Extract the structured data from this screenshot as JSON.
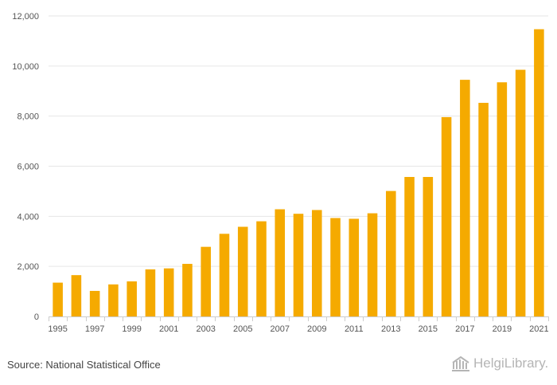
{
  "chart_data": {
    "type": "bar",
    "title": "",
    "xlabel": "",
    "ylabel": "",
    "categories": [
      "1995",
      "1996",
      "1997",
      "1998",
      "1999",
      "2000",
      "2001",
      "2002",
      "2003",
      "2004",
      "2005",
      "2006",
      "2007",
      "2008",
      "2009",
      "2010",
      "2011",
      "2012",
      "2013",
      "2014",
      "2015",
      "2016",
      "2017",
      "2018",
      "2019",
      "2020",
      "2021"
    ],
    "x_tick_labels": [
      "1995",
      "1997",
      "1999",
      "2001",
      "2003",
      "2005",
      "2007",
      "2009",
      "2011",
      "2013",
      "2015",
      "2017",
      "2019",
      "2021"
    ],
    "values": [
      1350,
      1650,
      1020,
      1280,
      1400,
      1880,
      1920,
      2100,
      2780,
      3300,
      3580,
      3800,
      4280,
      4100,
      4250,
      3930,
      3900,
      4120,
      5010,
      5570,
      5570,
      7960,
      9450,
      8530,
      9350,
      9850,
      11470
    ],
    "ylim": [
      0,
      12000
    ],
    "y_ticks": [
      0,
      2000,
      4000,
      6000,
      8000,
      10000,
      12000
    ],
    "y_tick_labels": [
      "0",
      "2,000",
      "4,000",
      "6,000",
      "8,000",
      "10,000",
      "12,000"
    ],
    "grid": true,
    "bar_color": "#f5aa00",
    "grid_color": "#e6e6e6",
    "axis_color": "#cccccc"
  },
  "footer": {
    "source": "Source: National Statistical Office",
    "logo_text": "HelgiLibrary."
  }
}
